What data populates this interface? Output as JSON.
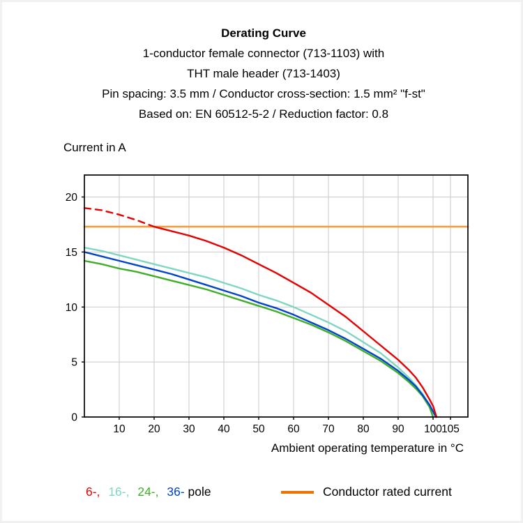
{
  "header": {
    "title": "Derating Curve",
    "lines": [
      "1-conductor female connector (713-1103) with",
      "THT male header (713-1403)",
      "Pin spacing: 3.5 mm / Conductor cross-section: 1.5 mm² \"f-st\"",
      "Based on: EN 60512-5-2 / Reduction factor: 0.8"
    ]
  },
  "axis": {
    "ylabel": "Current in A",
    "xlabel": "Ambient operating temperature in °C"
  },
  "chart_data": {
    "type": "line",
    "title": "Derating Curve",
    "xlabel": "Ambient operating temperature in °C",
    "ylabel": "Current in A",
    "xlim": [
      0,
      110
    ],
    "ylim": [
      0,
      22
    ],
    "x_ticks": [
      10,
      20,
      30,
      40,
      50,
      60,
      70,
      80,
      90,
      100,
      105
    ],
    "y_ticks": [
      0,
      5,
      10,
      15,
      20
    ],
    "grid": true,
    "grid_color": "#c9c9c9",
    "legend_position": "bottom",
    "series": [
      {
        "name": "Conductor rated current",
        "color": "#f29b3c",
        "width": 2.6,
        "points": [
          [
            0,
            17.3
          ],
          [
            110,
            17.3
          ]
        ]
      },
      {
        "name": "16-pole",
        "color": "#7fd6c2",
        "width": 2.4,
        "points": [
          [
            0,
            15.4
          ],
          [
            5,
            15.1
          ],
          [
            10,
            14.7
          ],
          [
            15,
            14.3
          ],
          [
            20,
            13.9
          ],
          [
            25,
            13.5
          ],
          [
            30,
            13.1
          ],
          [
            35,
            12.7
          ],
          [
            40,
            12.2
          ],
          [
            45,
            11.7
          ],
          [
            50,
            11.1
          ],
          [
            55,
            10.6
          ],
          [
            60,
            10.0
          ],
          [
            65,
            9.3
          ],
          [
            70,
            8.6
          ],
          [
            75,
            7.8
          ],
          [
            80,
            6.8
          ],
          [
            85,
            5.8
          ],
          [
            90,
            4.5
          ],
          [
            93,
            3.6
          ],
          [
            95,
            2.9
          ],
          [
            97,
            2.1
          ],
          [
            99,
            1.0
          ],
          [
            100,
            0
          ]
        ]
      },
      {
        "name": "24-pole",
        "color": "#3fae29",
        "width": 2.4,
        "points": [
          [
            0,
            14.2
          ],
          [
            5,
            13.9
          ],
          [
            10,
            13.5
          ],
          [
            15,
            13.2
          ],
          [
            20,
            12.8
          ],
          [
            25,
            12.4
          ],
          [
            30,
            12.0
          ],
          [
            35,
            11.6
          ],
          [
            40,
            11.1
          ],
          [
            45,
            10.6
          ],
          [
            50,
            10.1
          ],
          [
            55,
            9.6
          ],
          [
            60,
            9.0
          ],
          [
            65,
            8.4
          ],
          [
            70,
            7.7
          ],
          [
            75,
            6.9
          ],
          [
            80,
            6.0
          ],
          [
            85,
            5.1
          ],
          [
            90,
            4.0
          ],
          [
            93,
            3.2
          ],
          [
            95,
            2.6
          ],
          [
            97,
            1.9
          ],
          [
            99,
            0.9
          ],
          [
            100,
            0
          ]
        ]
      },
      {
        "name": "36-pole",
        "color": "#0044cc",
        "width": 2.4,
        "points": [
          [
            0,
            15.0
          ],
          [
            5,
            14.6
          ],
          [
            10,
            14.2
          ],
          [
            15,
            13.8
          ],
          [
            20,
            13.4
          ],
          [
            25,
            13.0
          ],
          [
            30,
            12.5
          ],
          [
            35,
            12.0
          ],
          [
            40,
            11.5
          ],
          [
            45,
            11.0
          ],
          [
            50,
            10.4
          ],
          [
            55,
            9.9
          ],
          [
            60,
            9.3
          ],
          [
            65,
            8.6
          ],
          [
            70,
            7.9
          ],
          [
            75,
            7.1
          ],
          [
            80,
            6.2
          ],
          [
            85,
            5.3
          ],
          [
            90,
            4.2
          ],
          [
            93,
            3.4
          ],
          [
            95,
            2.8
          ],
          [
            97,
            2.0
          ],
          [
            99,
            1.1
          ],
          [
            100,
            0.5
          ],
          [
            100.8,
            0
          ]
        ]
      },
      {
        "name": "6-pole",
        "color": "#e60000",
        "width": 2.4,
        "dash_until": 20,
        "points": [
          [
            0,
            19.0
          ],
          [
            5,
            18.8
          ],
          [
            10,
            18.4
          ],
          [
            15,
            17.9
          ],
          [
            20,
            17.3
          ],
          [
            25,
            16.9
          ],
          [
            30,
            16.5
          ],
          [
            35,
            16.0
          ],
          [
            40,
            15.4
          ],
          [
            45,
            14.7
          ],
          [
            50,
            13.9
          ],
          [
            55,
            13.1
          ],
          [
            60,
            12.2
          ],
          [
            65,
            11.3
          ],
          [
            70,
            10.2
          ],
          [
            75,
            9.1
          ],
          [
            80,
            7.8
          ],
          [
            85,
            6.5
          ],
          [
            90,
            5.2
          ],
          [
            93,
            4.3
          ],
          [
            95,
            3.6
          ],
          [
            97,
            2.7
          ],
          [
            99,
            1.6
          ],
          [
            100,
            1.0
          ],
          [
            101,
            0
          ]
        ]
      }
    ]
  },
  "legend": {
    "pole_items": [
      {
        "label": "6-,",
        "color": "#e60000"
      },
      {
        "label": "16-,",
        "color": "#7fd6c2"
      },
      {
        "label": "24-,",
        "color": "#3fae29"
      },
      {
        "label": "36-",
        "color": "#0044cc"
      },
      {
        "label": "pole",
        "color": "#000000"
      }
    ],
    "rated": {
      "label": "Conductor rated current",
      "color": "#ee7203"
    }
  }
}
